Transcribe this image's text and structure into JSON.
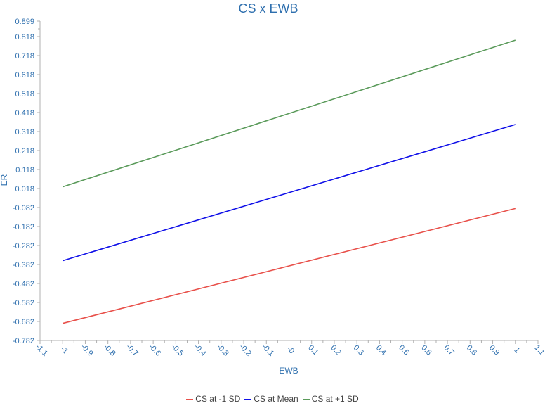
{
  "chart_data": {
    "type": "line",
    "title": "CS x EWB",
    "xlabel": "EWB",
    "ylabel": "ER",
    "xlim": [
      -1.1,
      1.1
    ],
    "ylim": [
      -0.782,
      0.899
    ],
    "x_ticks": [
      "-1.1",
      "-1",
      "-0.9",
      "-0.8",
      "-0.7",
      "-0.6",
      "-0.5",
      "-0.4",
      "-0.3",
      "-0.2",
      "-0.1",
      "-0",
      "0.1",
      "0.2",
      "0.3",
      "0.4",
      "0.5",
      "0.6",
      "0.7",
      "0.8",
      "0.9",
      "1",
      "1.1"
    ],
    "y_ticks": [
      "0.899",
      "0.818",
      "0.718",
      "0.618",
      "0.518",
      "0.418",
      "0.318",
      "0.218",
      "0.118",
      "0.018",
      "-0.082",
      "-0.182",
      "-0.282",
      "-0.382",
      "-0.482",
      "-0.582",
      "-0.682",
      "-0.782"
    ],
    "grid": false,
    "legend_position": "bottom",
    "series": [
      {
        "name": "CS at -1 SD",
        "color": "#e8504a",
        "x": [
          -1,
          1
        ],
        "y": [
          -0.692,
          -0.087
        ]
      },
      {
        "name": "CS at Mean",
        "color": "#1010e8",
        "x": [
          -1,
          1
        ],
        "y": [
          -0.362,
          0.355
        ]
      },
      {
        "name": "CS at +1 SD",
        "color": "#5a9a5a",
        "x": [
          -1,
          1
        ],
        "y": [
          0.027,
          0.799
        ]
      }
    ],
    "colors": {
      "axis_text": "#2e6fae",
      "title": "#2e6fae",
      "axis_line": "#b0b0b0"
    }
  }
}
